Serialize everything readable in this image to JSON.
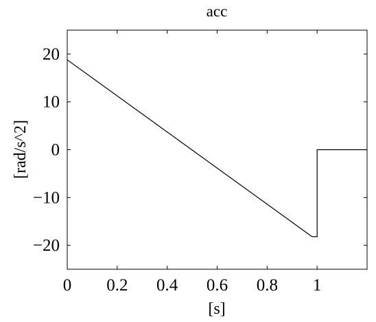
{
  "chart_data": {
    "type": "line",
    "title": "acc",
    "xlabel": "[s]",
    "ylabel": "[rad/s^2]",
    "xlim": [
      0,
      1.2
    ],
    "ylim": [
      -25,
      25
    ],
    "xticks": [
      0,
      0.2,
      0.4,
      0.6,
      0.8,
      1
    ],
    "xtick_labels": [
      "0",
      "0.2",
      "0.4",
      "0.6",
      "0.8",
      "1"
    ],
    "yticks": [
      -20,
      -10,
      0,
      10,
      20
    ],
    "ytick_labels": [
      "−20",
      "−10",
      "0",
      "10",
      "20"
    ],
    "grid": false,
    "legend": "none",
    "series": [
      {
        "x": [
          0,
          0.98,
          1.0,
          1.0,
          1.2
        ],
        "y": [
          18.8,
          -18.2,
          -18.2,
          0,
          0
        ],
        "color": "#000000"
      }
    ]
  }
}
